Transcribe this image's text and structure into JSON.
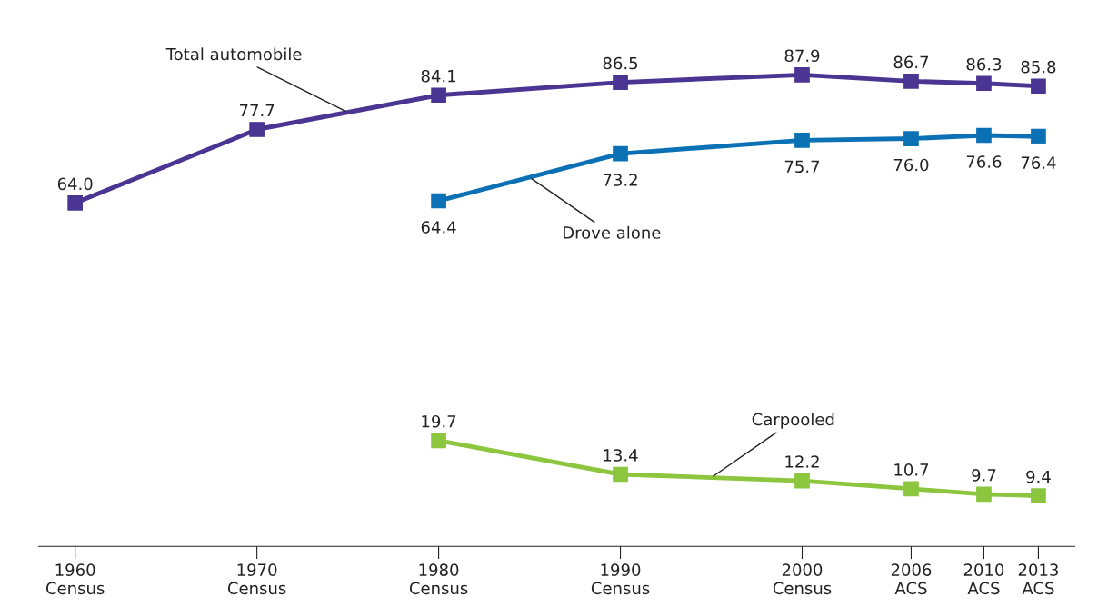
{
  "chart_data": {
    "type": "line",
    "x": [
      1960,
      1970,
      1980,
      1990,
      2000,
      2006,
      2010,
      2013
    ],
    "series": [
      {
        "name": "Total automobile",
        "color": "#4a3593",
        "values": [
          64.0,
          77.7,
          84.1,
          86.5,
          87.9,
          86.7,
          86.3,
          85.8
        ],
        "value_labels": [
          "64.0",
          "77.7",
          "84.1",
          "86.5",
          "87.9",
          "86.7",
          "86.3",
          "85.8"
        ]
      },
      {
        "name": "Drove alone",
        "color": "#0b71b4",
        "values": [
          null,
          null,
          64.4,
          73.2,
          75.7,
          76.0,
          76.6,
          76.4
        ],
        "value_labels": [
          null,
          null,
          "64.4",
          "73.2",
          "75.7",
          "76.0",
          "76.6",
          "76.4"
        ]
      },
      {
        "name": "Carpooled",
        "color": "#8cc63f",
        "values": [
          null,
          null,
          19.7,
          13.4,
          12.2,
          10.7,
          9.7,
          9.4
        ],
        "value_labels": [
          null,
          null,
          "19.7",
          "13.4",
          "12.2",
          "10.7",
          "9.7",
          "9.4"
        ]
      }
    ],
    "xlim": [
      1958,
      2015
    ],
    "xticks": [
      {
        "value": 1960,
        "label": "1960\nCensus"
      },
      {
        "value": 1970,
        "label": "1970\nCensus"
      },
      {
        "value": 1980,
        "label": "1980\nCensus"
      },
      {
        "value": 1990,
        "label": "1990\nCensus"
      },
      {
        "value": 2000,
        "label": "2000\nCensus"
      },
      {
        "value": 2006,
        "label": "2006\nACS"
      },
      {
        "value": 2010,
        "label": "2010\nACS"
      },
      {
        "value": 2013,
        "label": "2013\nACS"
      }
    ],
    "tick_labels": "x",
    "marker": "square",
    "line_style": "solid",
    "grid": false,
    "legend": false
  }
}
